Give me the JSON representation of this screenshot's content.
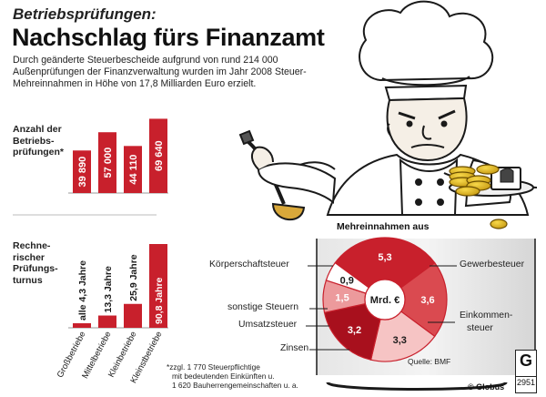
{
  "kicker": "Betriebsprüfungen:",
  "headline": "Nachschlag fürs Finanzamt",
  "intro": "Durch geänderte Steuerbescheide aufgrund von rund 214 000 Außenprüfungen der Finanzverwaltung wurden im Jahr 2008 Steuer-Mehreinnahmen in Höhe von 17,8 Milliarden Euro erzielt.",
  "colors": {
    "dark_red": "#a8101d",
    "red": "#c8202c",
    "mid_red": "#da4a50",
    "pink": "#ec9a9c",
    "light_pink": "#f6c4c4",
    "grey_panel": "#dcdcdc",
    "ink": "#1a1a1a"
  },
  "chart_data": [
    {
      "type": "bar",
      "label": "Anzahl der Betriebsprüfungen*",
      "categories": [
        "Großbetriebe",
        "Mittelbetriebe",
        "Kleinbetriebe",
        "Kleinstbetriebe"
      ],
      "values": [
        39890,
        57000,
        44110,
        69640
      ],
      "value_labels": [
        "39 890",
        "57 000",
        "44 110",
        "69 640"
      ]
    },
    {
      "type": "bar",
      "label": "Rechnerischer Prüfungsturnus",
      "categories": [
        "Großbetriebe",
        "Mittelbetriebe",
        "Kleinbetriebe",
        "Kleinstbetriebe"
      ],
      "values": [
        4.3,
        13.3,
        25.9,
        90.8
      ],
      "value_labels": [
        "alle 4,3 Jahre",
        "13,3 Jahre",
        "25,9 Jahre",
        "90,8 Jahre"
      ]
    },
    {
      "type": "pie",
      "title": "Mehreinnahmen aus",
      "center_label": "Mrd. €",
      "slices": [
        {
          "name": "Körperschaftsteuer",
          "value": 5.3,
          "label": "5,3"
        },
        {
          "name": "Gewerbesteuer",
          "value": 3.6,
          "label": "3,6"
        },
        {
          "name": "Einkommensteuer",
          "value": 3.3,
          "label": "3,3"
        },
        {
          "name": "Zinsen",
          "value": 3.2,
          "label": "3,2"
        },
        {
          "name": "Umsatzsteuer",
          "value": 1.5,
          "label": "1,5"
        },
        {
          "name": "sonstige Steuern",
          "value": 0.9,
          "label": "0,9"
        }
      ],
      "callouts": {
        "koerperschaft": "Körperschaftsteuer",
        "gewerbe": "Gewerbesteuer",
        "sonstige": "sonstige Steuern",
        "umsatz": "Umsatzsteuer",
        "einkommen_1": "Einkommen-",
        "einkommen_2": "steuer",
        "zinsen": "Zinsen"
      },
      "source": "Quelle: BMF"
    }
  ],
  "left_labels": {
    "count_1": "Anzahl der",
    "count_2": "Betriebs-",
    "count_3": "prüfungen*",
    "turnus_1": "Rechne-",
    "turnus_2": "rischer",
    "turnus_3": "Prüfungs-",
    "turnus_4": "turnus"
  },
  "footnote": [
    "*zzgl. 1 770 Steuerpflichtige",
    "mit bedeutenden Einkünften u.",
    "1 620 Bauherrengemeinschaften u. a."
  ],
  "credit": "© Globus",
  "logo": {
    "letter": "G",
    "number": "2951"
  }
}
